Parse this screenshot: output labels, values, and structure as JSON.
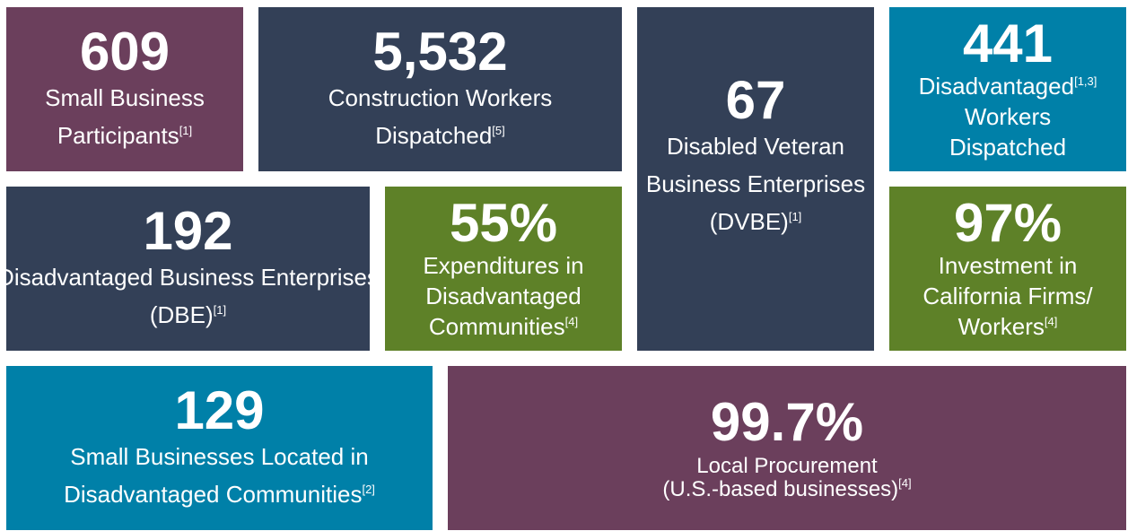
{
  "tiles": [
    {
      "value": "609",
      "lines": [
        "Small Business",
        "Participants"
      ],
      "note": "[1]"
    },
    {
      "value": "5,532",
      "lines": [
        "Construction Workers",
        "Dispatched"
      ],
      "note": "[5]"
    },
    {
      "value": "67",
      "lines": [
        "Disabled Veteran",
        "Business Enterprises",
        "(DVBE)"
      ],
      "note": "[1]"
    },
    {
      "value": "441",
      "lines": [
        "Disadvantaged",
        "Workers",
        "Dispatched"
      ],
      "note": "[1,3]"
    },
    {
      "value": "192",
      "lines": [
        "Disadvantaged Business Enterprises",
        "(DBE)"
      ],
      "note": "[1]"
    },
    {
      "value": "55%",
      "lines": [
        "Expenditures in",
        "Disadvantaged",
        "Communities"
      ],
      "note": "[4]"
    },
    {
      "value": "97%",
      "lines": [
        "Investment in",
        "California Firms/",
        "Workers"
      ],
      "note": "[4]"
    },
    {
      "value": "129",
      "lines": [
        "Small Businesses Located in",
        "Disadvantaged Communities"
      ],
      "note": "[2]"
    },
    {
      "value": "99.7%",
      "lines": [
        "Local Procurement",
        "(U.S.-based businesses)"
      ],
      "note": "[4]"
    }
  ]
}
